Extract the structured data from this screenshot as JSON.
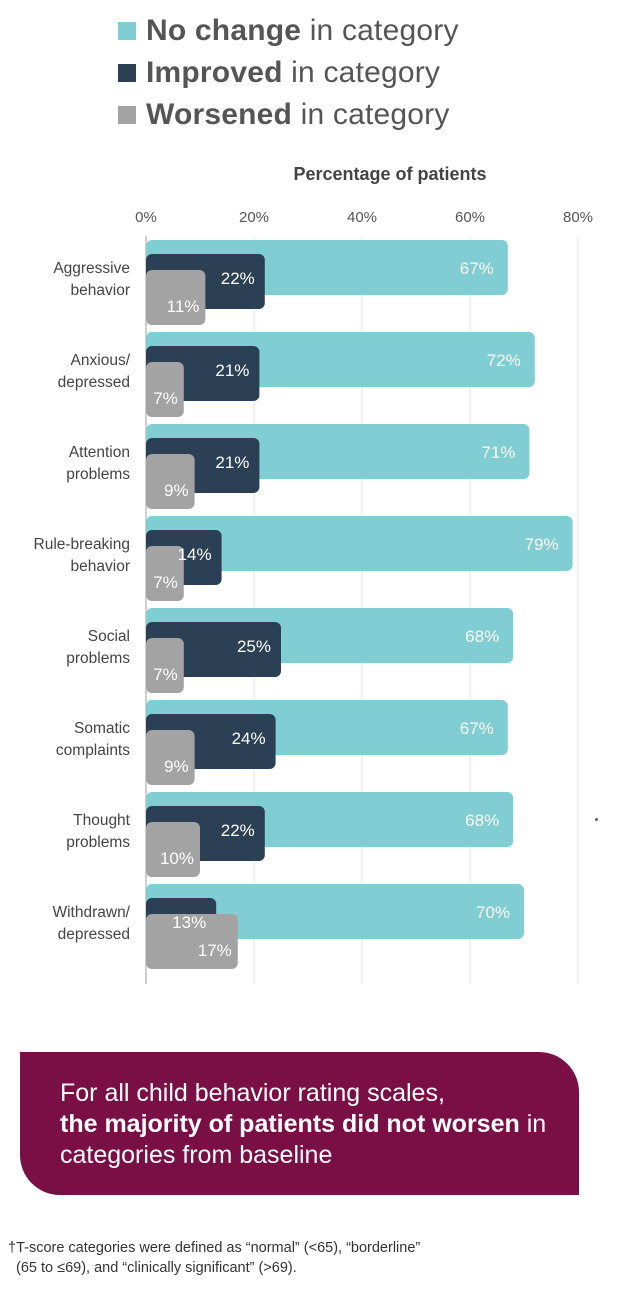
{
  "legend": [
    {
      "bold": "No change",
      "rest": " in category",
      "color": "#80cdd3"
    },
    {
      "bold": "Improved",
      "rest": " in category",
      "color": "#2b3f55"
    },
    {
      "bold": "Worsened",
      "rest": " in category",
      "color": "#a3a3a3"
    }
  ],
  "chart_data": {
    "type": "bar",
    "orientation": "horizontal",
    "xlabel": "Percentage of patients",
    "xlim": [
      0,
      80
    ],
    "ticks": [
      "0%",
      "20%",
      "40%",
      "60%",
      "80%"
    ],
    "grid": true,
    "categories": [
      [
        "Aggressive",
        "behavior"
      ],
      [
        "Anxious/",
        "depressed"
      ],
      [
        "Attention",
        "problems"
      ],
      [
        "Rule-breaking",
        "behavior"
      ],
      [
        "Social",
        "problems"
      ],
      [
        "Somatic",
        "complaints"
      ],
      [
        "Thought",
        "problems"
      ],
      [
        "Withdrawn/",
        "depressed"
      ]
    ],
    "series": [
      {
        "name": "No change",
        "color": "#80cdd3",
        "values": [
          67,
          72,
          71,
          79,
          68,
          67,
          68,
          70
        ]
      },
      {
        "name": "Improved",
        "color": "#2b3f55",
        "values": [
          22,
          21,
          21,
          14,
          25,
          24,
          22,
          13
        ]
      },
      {
        "name": "Worsened",
        "color": "#a3a3a3",
        "values": [
          11,
          7,
          9,
          7,
          7,
          9,
          10,
          17
        ]
      }
    ]
  },
  "callout": {
    "line1": "For all child behavior rating scales,",
    "bold": "the majority of patients did not worsen",
    "rest": " in categories from baseline"
  },
  "footnote": {
    "line1": "†T-score categories were defined as “normal” (<65), “borderline”",
    "line2": "(65 to ≤69), and “clinically significant” (>69)."
  }
}
